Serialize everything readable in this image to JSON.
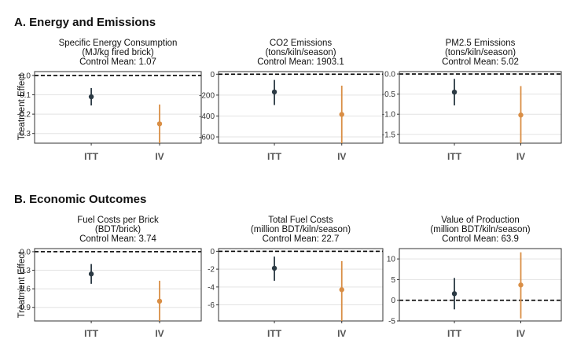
{
  "colors": {
    "itt": "#2b3a44",
    "iv": "#d98e45",
    "zero_line": "#000000",
    "grid": "#e3e3e3",
    "frame": "#333333"
  },
  "sections": [
    {
      "title": "A. Energy and Emissions",
      "ylabel": "Treatment Effect"
    },
    {
      "title": "B. Economic Outcomes",
      "ylabel": "Treatment Effect"
    }
  ],
  "chart_data": [
    {
      "type": "scatter",
      "section": 0,
      "title_lines": [
        "Specific Energy Consumption",
        "(MJ/kg fired brick)",
        "Control Mean: 1.07"
      ],
      "categories": [
        "ITT",
        "IV"
      ],
      "estimates": [
        -0.11,
        -0.25
      ],
      "ci_low": [
        -0.155,
        -0.35
      ],
      "ci_high": [
        -0.065,
        -0.15
      ],
      "ylim": [
        -0.35,
        0.02
      ],
      "yticks": [
        0.0,
        -0.1,
        -0.2,
        -0.3
      ],
      "ytick_labels": [
        "0.0",
        "-0.1",
        "-0.2",
        "-0.3"
      ],
      "zero_line": 0
    },
    {
      "type": "scatter",
      "section": 0,
      "title_lines": [
        "CO2 Emissions",
        "(tons/kiln/season)",
        "Control Mean: 1903.1"
      ],
      "categories": [
        "ITT",
        "IV"
      ],
      "estimates": [
        -170,
        -385
      ],
      "ci_low": [
        -295,
        -660
      ],
      "ci_high": [
        -55,
        -110
      ],
      "ylim": [
        -660,
        25
      ],
      "yticks": [
        0,
        -200,
        -400,
        -600
      ],
      "ytick_labels": [
        "0",
        "-200",
        "-400",
        "-600"
      ],
      "zero_line": 0
    },
    {
      "type": "scatter",
      "section": 0,
      "title_lines": [
        "PM2.5 Emissions",
        "(tons/kiln/season)",
        "Control Mean: 5.02"
      ],
      "categories": [
        "ITT",
        "IV"
      ],
      "estimates": [
        -0.45,
        -1.02
      ],
      "ci_low": [
        -0.78,
        -1.72
      ],
      "ci_high": [
        -0.12,
        -0.3
      ],
      "ylim": [
        -1.72,
        0.06
      ],
      "yticks": [
        0.0,
        -0.5,
        -1.0,
        -1.5
      ],
      "ytick_labels": [
        "0.0",
        "-0.5",
        "-1.0",
        "-1.5"
      ],
      "zero_line": 0
    },
    {
      "type": "scatter",
      "section": 1,
      "title_lines": [
        "Fuel Costs per Brick",
        "(BDT/brick)",
        "Control Mean: 3.74"
      ],
      "categories": [
        "ITT",
        "IV"
      ],
      "estimates": [
        -0.36,
        -0.8
      ],
      "ci_low": [
        -0.52,
        -1.12
      ],
      "ci_high": [
        -0.2,
        -0.47
      ],
      "ylim": [
        -1.12,
        0.05
      ],
      "yticks": [
        0.0,
        -0.3,
        -0.6,
        -0.9
      ],
      "ytick_labels": [
        "0.0",
        "-0.3",
        "-0.6",
        "-0.9"
      ],
      "zero_line": 0
    },
    {
      "type": "scatter",
      "section": 1,
      "title_lines": [
        "Total Fuel Costs",
        "(million BDT/kiln/season)",
        "Control Mean: 22.7"
      ],
      "categories": [
        "ITT",
        "IV"
      ],
      "estimates": [
        -1.9,
        -4.3
      ],
      "ci_low": [
        -3.3,
        -7.8
      ],
      "ci_high": [
        -0.6,
        -1.1
      ],
      "ylim": [
        -7.8,
        0.3
      ],
      "yticks": [
        0,
        -2,
        -4,
        -6
      ],
      "ytick_labels": [
        "0",
        "-2",
        "-4",
        "-6"
      ],
      "zero_line": 0
    },
    {
      "type": "scatter",
      "section": 1,
      "title_lines": [
        "Value of Production",
        "(million BDT/kiln/season)",
        "Control Mean: 63.9"
      ],
      "categories": [
        "ITT",
        "IV"
      ],
      "estimates": [
        1.6,
        3.7
      ],
      "ci_low": [
        -2.2,
        -4.4
      ],
      "ci_high": [
        5.4,
        11.6
      ],
      "ylim": [
        -5,
        12.5
      ],
      "yticks": [
        10,
        5,
        0,
        -5
      ],
      "ytick_labels": [
        "10",
        "5",
        "0",
        "-5"
      ],
      "zero_line": 0
    }
  ]
}
